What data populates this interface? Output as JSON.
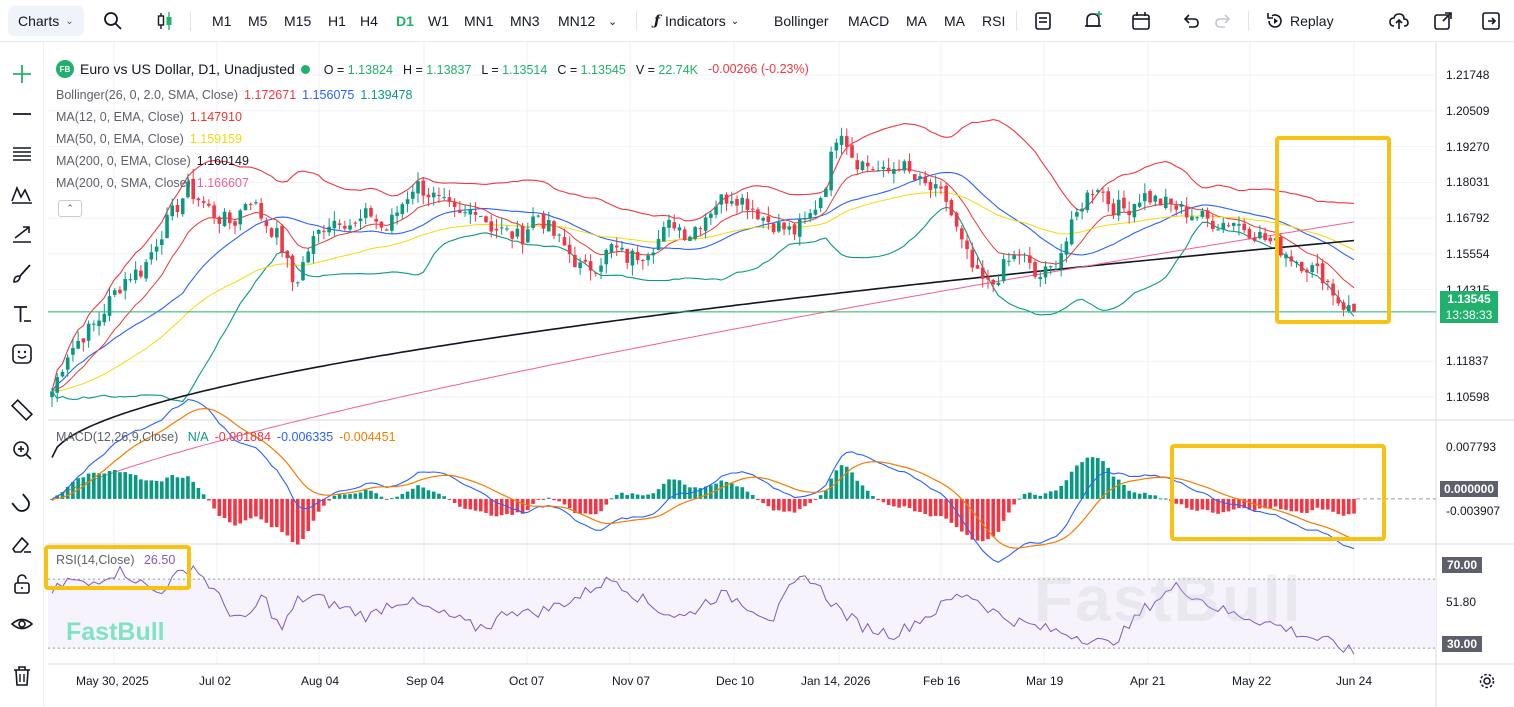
{
  "toolbar": {
    "charts_label": "Charts",
    "timeframes": [
      "M1",
      "M5",
      "M15",
      "H1",
      "H4",
      "D1",
      "W1",
      "MN1",
      "MN3",
      "MN12"
    ],
    "active_timeframe": "D1",
    "indicators_label": "Indicators",
    "quick_indicators": [
      "Bollinger",
      "MACD",
      "MA",
      "MA",
      "RSI"
    ],
    "replay_label": "Replay"
  },
  "legend": {
    "symbol_badge": "FB",
    "title": "Euro vs US Dollar, D1, Unadjusted",
    "ohlc": [
      {
        "k": "O",
        "v": "1.13824"
      },
      {
        "k": "H",
        "v": "1.13837"
      },
      {
        "k": "L",
        "v": "1.13514"
      },
      {
        "k": "C",
        "v": "1.13545"
      },
      {
        "k": "V",
        "v": "22.74K"
      }
    ],
    "change": "-0.00266 (-0.23%)",
    "indicators": [
      {
        "name": "Bollinger(26, 0, 2.0, SMA, Close)",
        "values": [
          {
            "v": "1.172671",
            "color": "#f23645"
          },
          {
            "v": "1.156075",
            "color": "#2962ff"
          },
          {
            "v": "1.139478",
            "color": "#089981"
          }
        ]
      },
      {
        "name": "MA(12, 0, EMA, Close)",
        "values": [
          {
            "v": "1.147910",
            "color": "#e53935"
          }
        ]
      },
      {
        "name": "MA(50, 0, EMA, Close)",
        "values": [
          {
            "v": "1.159159",
            "color": "#f5d90a"
          }
        ]
      },
      {
        "name": "MA(200, 0, EMA, Close)",
        "values": [
          {
            "v": "1.160149",
            "color": "#131722"
          }
        ]
      },
      {
        "name": "MA(200, 0, SMA, Close)",
        "values": [
          {
            "v": "1.166607",
            "color": "#f06292"
          }
        ]
      }
    ],
    "macd_name": "MACD(12,26,9,Close)",
    "macd_values": [
      {
        "v": "N/A",
        "color": "#089981"
      },
      {
        "v": "-0.001884",
        "color": "#f23645"
      },
      {
        "v": "-0.006335",
        "color": "#2962ff"
      },
      {
        "v": "-0.004451",
        "color": "#f57c00"
      }
    ],
    "rsi_name": "RSI(14,Close)",
    "rsi_value": "26.50"
  },
  "price_axis": {
    "ticks": [
      "1.21748",
      "1.20509",
      "1.19270",
      "1.18031",
      "1.16792",
      "1.15554",
      "1.14315",
      "1.11837",
      "1.10598"
    ],
    "last_price": "1.13545",
    "countdown": "13:38:33"
  },
  "macd_axis": {
    "ticks": [
      "0.007793",
      "-0.003907"
    ],
    "zero_label": "0.000000"
  },
  "rsi_axis": {
    "ticks": [
      "51.80"
    ],
    "upper_label": "70.00",
    "lower_label": "30.00"
  },
  "time_axis": [
    "May 30, 2025",
    "Jul 02",
    "Aug 04",
    "Sep 04",
    "Oct 07",
    "Nov 07",
    "Dec 10",
    "Jan 14, 2026",
    "Feb 16",
    "Mar 19",
    "Apr 21",
    "May 22",
    "Jun 24"
  ],
  "branding": {
    "logo": "FastBull",
    "watermark": "FastBull"
  },
  "colors": {
    "up": "#089981",
    "down": "#f23645",
    "bb_upper": "#f23645",
    "bb_mid": "#2962ff",
    "bb_lower": "#089981",
    "ema12": "#e53935",
    "ema50": "#f5d90a",
    "ema200": "#131722",
    "sma200": "#f06292",
    "macd": "#2962ff",
    "signal": "#f57c00",
    "rsi": "#7e57c2",
    "highlight": "#f7c212"
  },
  "chart_data": {
    "type": "candlestick",
    "title": "Euro vs US Dollar, D1, Unadjusted",
    "ylim": [
      1.098,
      1.222
    ],
    "x_labels": [
      "May 30, 2025",
      "Jul 02",
      "Aug 04",
      "Sep 04",
      "Oct 07",
      "Nov 07",
      "Dec 10",
      "Jan 14, 2026",
      "Feb 16",
      "Mar 19",
      "Apr 21",
      "May 22",
      "Jun 24"
    ],
    "close_path": [
      1.108,
      1.121,
      1.127,
      1.132,
      1.141,
      1.148,
      1.15,
      1.161,
      1.17,
      1.178,
      1.173,
      1.168,
      1.166,
      1.176,
      1.167,
      1.161,
      1.144,
      1.158,
      1.166,
      1.168,
      1.165,
      1.17,
      1.163,
      1.172,
      1.18,
      1.176,
      1.172,
      1.168,
      1.172,
      1.165,
      1.163,
      1.161,
      1.17,
      1.163,
      1.157,
      1.15,
      1.152,
      1.158,
      1.154,
      1.156,
      1.16,
      1.167,
      1.162,
      1.168,
      1.174,
      1.176,
      1.173,
      1.168,
      1.165,
      1.163,
      1.168,
      1.178,
      1.201,
      1.188,
      1.186,
      1.183,
      1.187,
      1.181,
      1.178,
      1.175,
      1.16,
      1.148,
      1.144,
      1.152,
      1.156,
      1.147,
      1.15,
      1.16,
      1.173,
      1.18,
      1.172,
      1.171,
      1.176,
      1.174,
      1.172,
      1.17,
      1.168,
      1.166,
      1.167,
      1.164,
      1.161,
      1.158,
      1.154,
      1.151,
      1.148,
      1.139,
      1.135
    ],
    "last_ohlc": {
      "open": 1.13824,
      "high": 1.13837,
      "low": 1.13514,
      "close": 1.13545,
      "volume": "22.74K"
    },
    "bollinger": {
      "upper": 1.172671,
      "middle": 1.156075,
      "lower": 1.139478
    },
    "ema12": 1.14791,
    "ema50": 1.159159,
    "ema200": 1.160149,
    "sma200": 1.166607,
    "macd": {
      "hist": -0.001884,
      "macd": -0.006335,
      "signal": -0.004451,
      "ylim": [
        -0.0062,
        0.0102
      ]
    },
    "rsi": {
      "value": 26.5,
      "overbought": 70,
      "oversold": 30,
      "path": [
        62,
        70,
        66,
        72,
        75,
        68,
        62,
        71,
        78,
        66,
        52,
        45,
        61,
        40,
        58,
        60,
        55,
        52,
        48,
        55,
        58,
        54,
        50,
        47,
        42,
        44,
        53,
        50,
        52,
        56,
        60,
        67,
        70,
        62,
        55,
        50,
        48,
        56,
        61,
        58,
        52,
        47,
        65,
        72,
        60,
        50,
        43,
        40,
        38,
        45,
        50,
        58,
        62,
        55,
        48,
        45,
        42,
        40,
        38,
        35,
        32,
        40,
        52,
        60,
        66,
        60,
        54,
        50,
        48,
        45,
        42,
        38,
        35,
        32,
        27
      ]
    },
    "legend_placement": "top-left",
    "grid": true
  }
}
